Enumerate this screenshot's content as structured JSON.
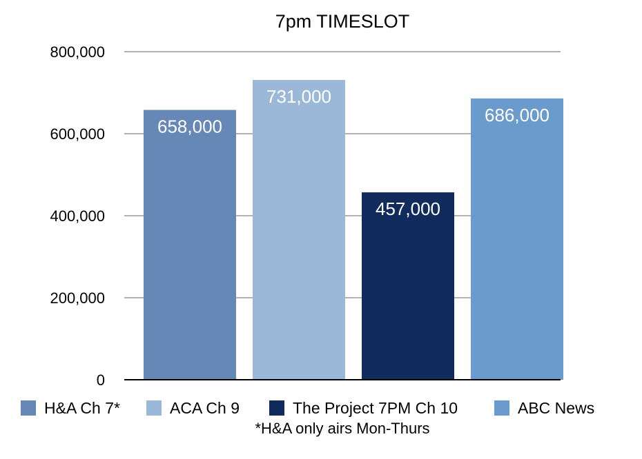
{
  "chart_data": {
    "type": "bar",
    "title": "7pm TIMESLOT",
    "categories": [
      "H&A Ch 7*",
      "ACA Ch 9",
      "The Project 7PM Ch 10",
      "ABC News"
    ],
    "values": [
      658000,
      731000,
      457000,
      686000
    ],
    "data_labels": [
      "658,000",
      "731,000",
      "457,000",
      "686,000"
    ],
    "colors": [
      "#6688b6",
      "#9cb8d8",
      "#112c5c",
      "#6b9bcc"
    ],
    "ylim": [
      0,
      800000
    ],
    "yticks": [
      0,
      200000,
      400000,
      600000,
      800000
    ],
    "ytick_labels": [
      "0",
      "200,000",
      "400,000",
      "600,000",
      "800,000"
    ],
    "xlabel": "",
    "ylabel": "",
    "grid": true,
    "legend": "bottom",
    "footnote": "*H&A only airs Mon-Thurs"
  }
}
